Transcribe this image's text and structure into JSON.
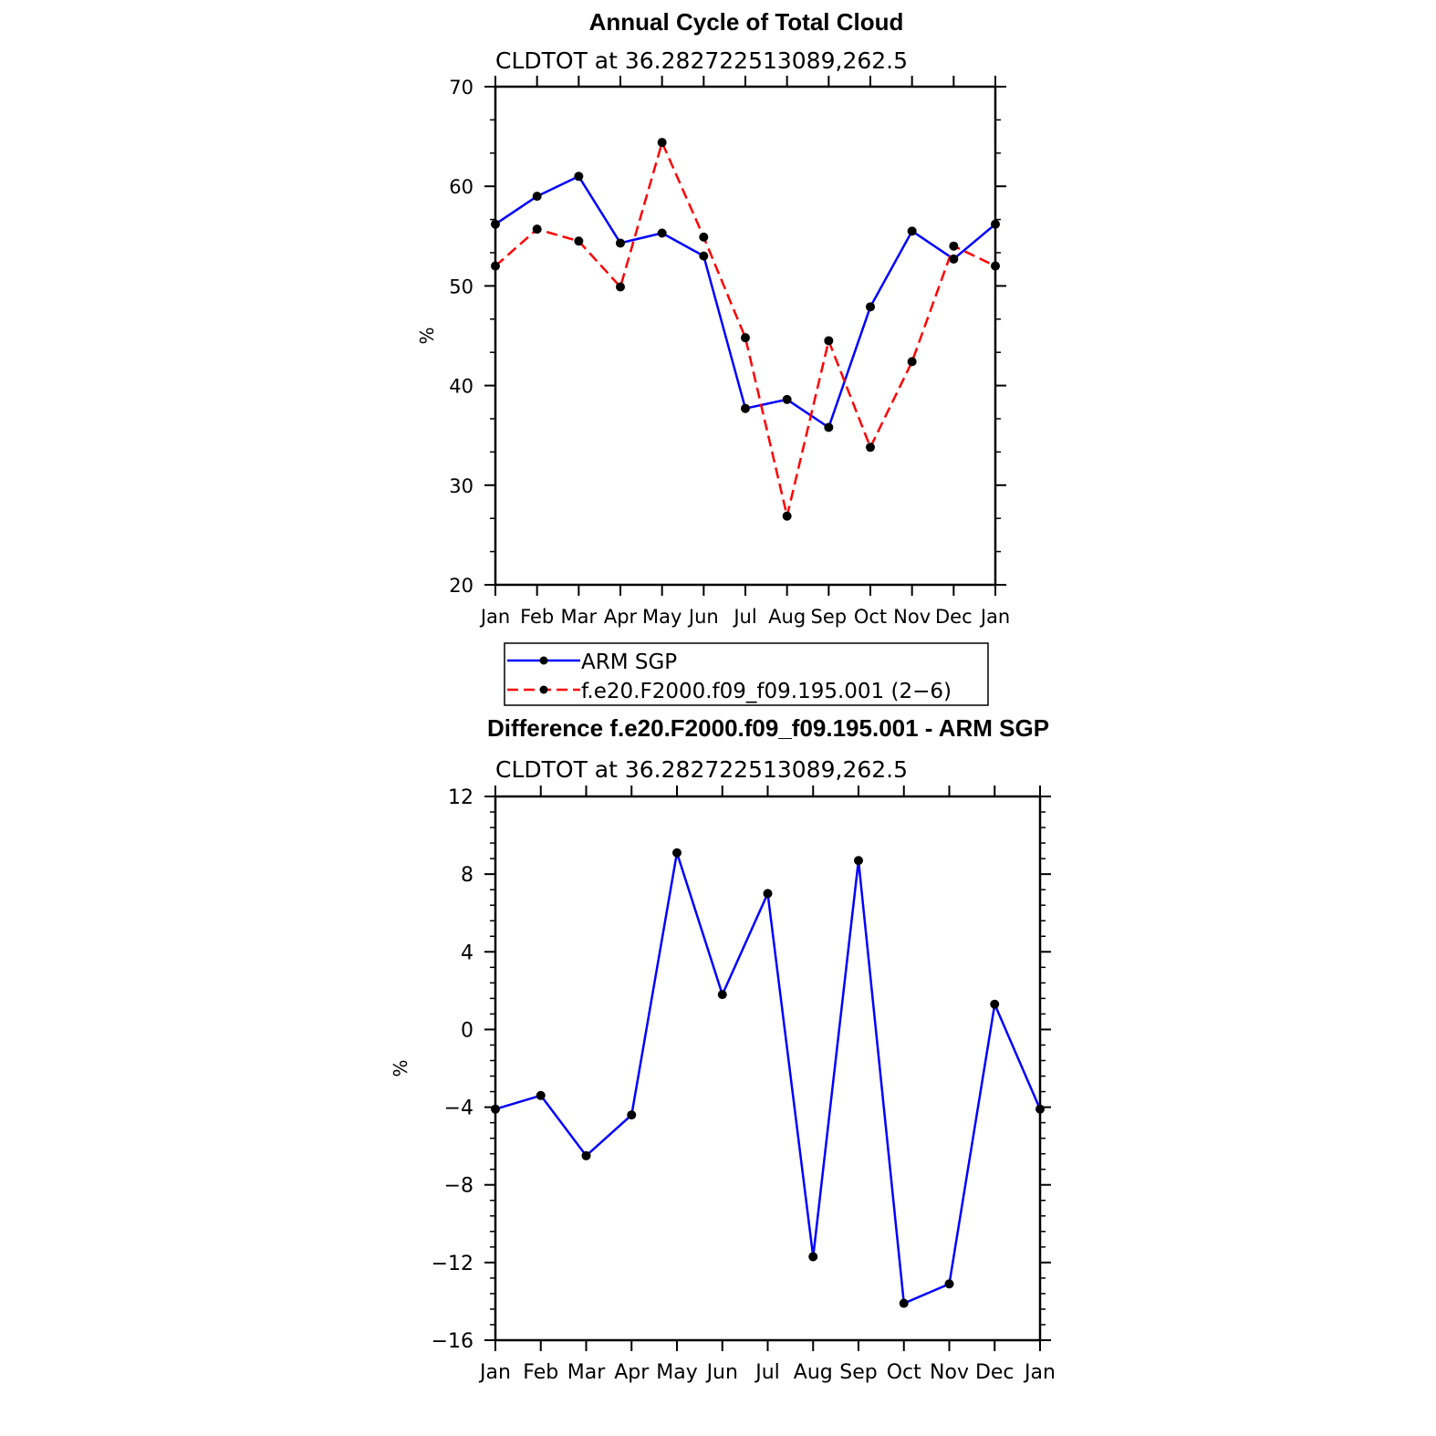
{
  "chart_data": [
    {
      "type": "line",
      "title": "Annual Cycle of Total Cloud",
      "subtitle": "CLDTOT at 36.282722513089,262.5",
      "xlabel": "",
      "ylabel": "%",
      "categories": [
        "Jan",
        "Feb",
        "Mar",
        "Apr",
        "May",
        "Jun",
        "Jul",
        "Aug",
        "Sep",
        "Oct",
        "Nov",
        "Dec",
        "Jan"
      ],
      "ylim": [
        20,
        70
      ],
      "yticks": [
        20,
        30,
        40,
        50,
        60,
        70
      ],
      "legend_position": "below",
      "series": [
        {
          "name": "ARM SGP",
          "color": "#0000ff",
          "dashed": false,
          "values": [
            56.2,
            59.0,
            61.0,
            54.3,
            55.3,
            53.0,
            37.7,
            38.6,
            35.8,
            47.9,
            55.5,
            52.7,
            56.2
          ]
        },
        {
          "name": "f.e20.F2000.f09_f09.195.001 (2−6)",
          "color": "#ff0000",
          "dashed": true,
          "values": [
            52.0,
            55.7,
            54.5,
            49.9,
            64.4,
            54.9,
            44.8,
            26.9,
            44.5,
            33.8,
            42.4,
            54.0,
            52.0
          ]
        }
      ]
    },
    {
      "type": "line",
      "title": "Difference f.e20.F2000.f09_f09.195.001 - ARM SGP",
      "subtitle": "CLDTOT at 36.282722513089,262.5",
      "xlabel": "",
      "ylabel": "%",
      "categories": [
        "Jan",
        "Feb",
        "Mar",
        "Apr",
        "May",
        "Jun",
        "Jul",
        "Aug",
        "Sep",
        "Oct",
        "Nov",
        "Dec",
        "Jan"
      ],
      "ylim": [
        -16,
        12
      ],
      "yticks": [
        -16,
        -12,
        -8,
        -4,
        0,
        4,
        8,
        12
      ],
      "series": [
        {
          "color": "#0000ff",
          "dashed": false,
          "values": [
            -4.1,
            -3.4,
            -6.5,
            -4.4,
            9.1,
            1.8,
            7.0,
            -11.7,
            8.7,
            -14.1,
            -13.1,
            1.3,
            -4.1
          ]
        }
      ]
    }
  ]
}
